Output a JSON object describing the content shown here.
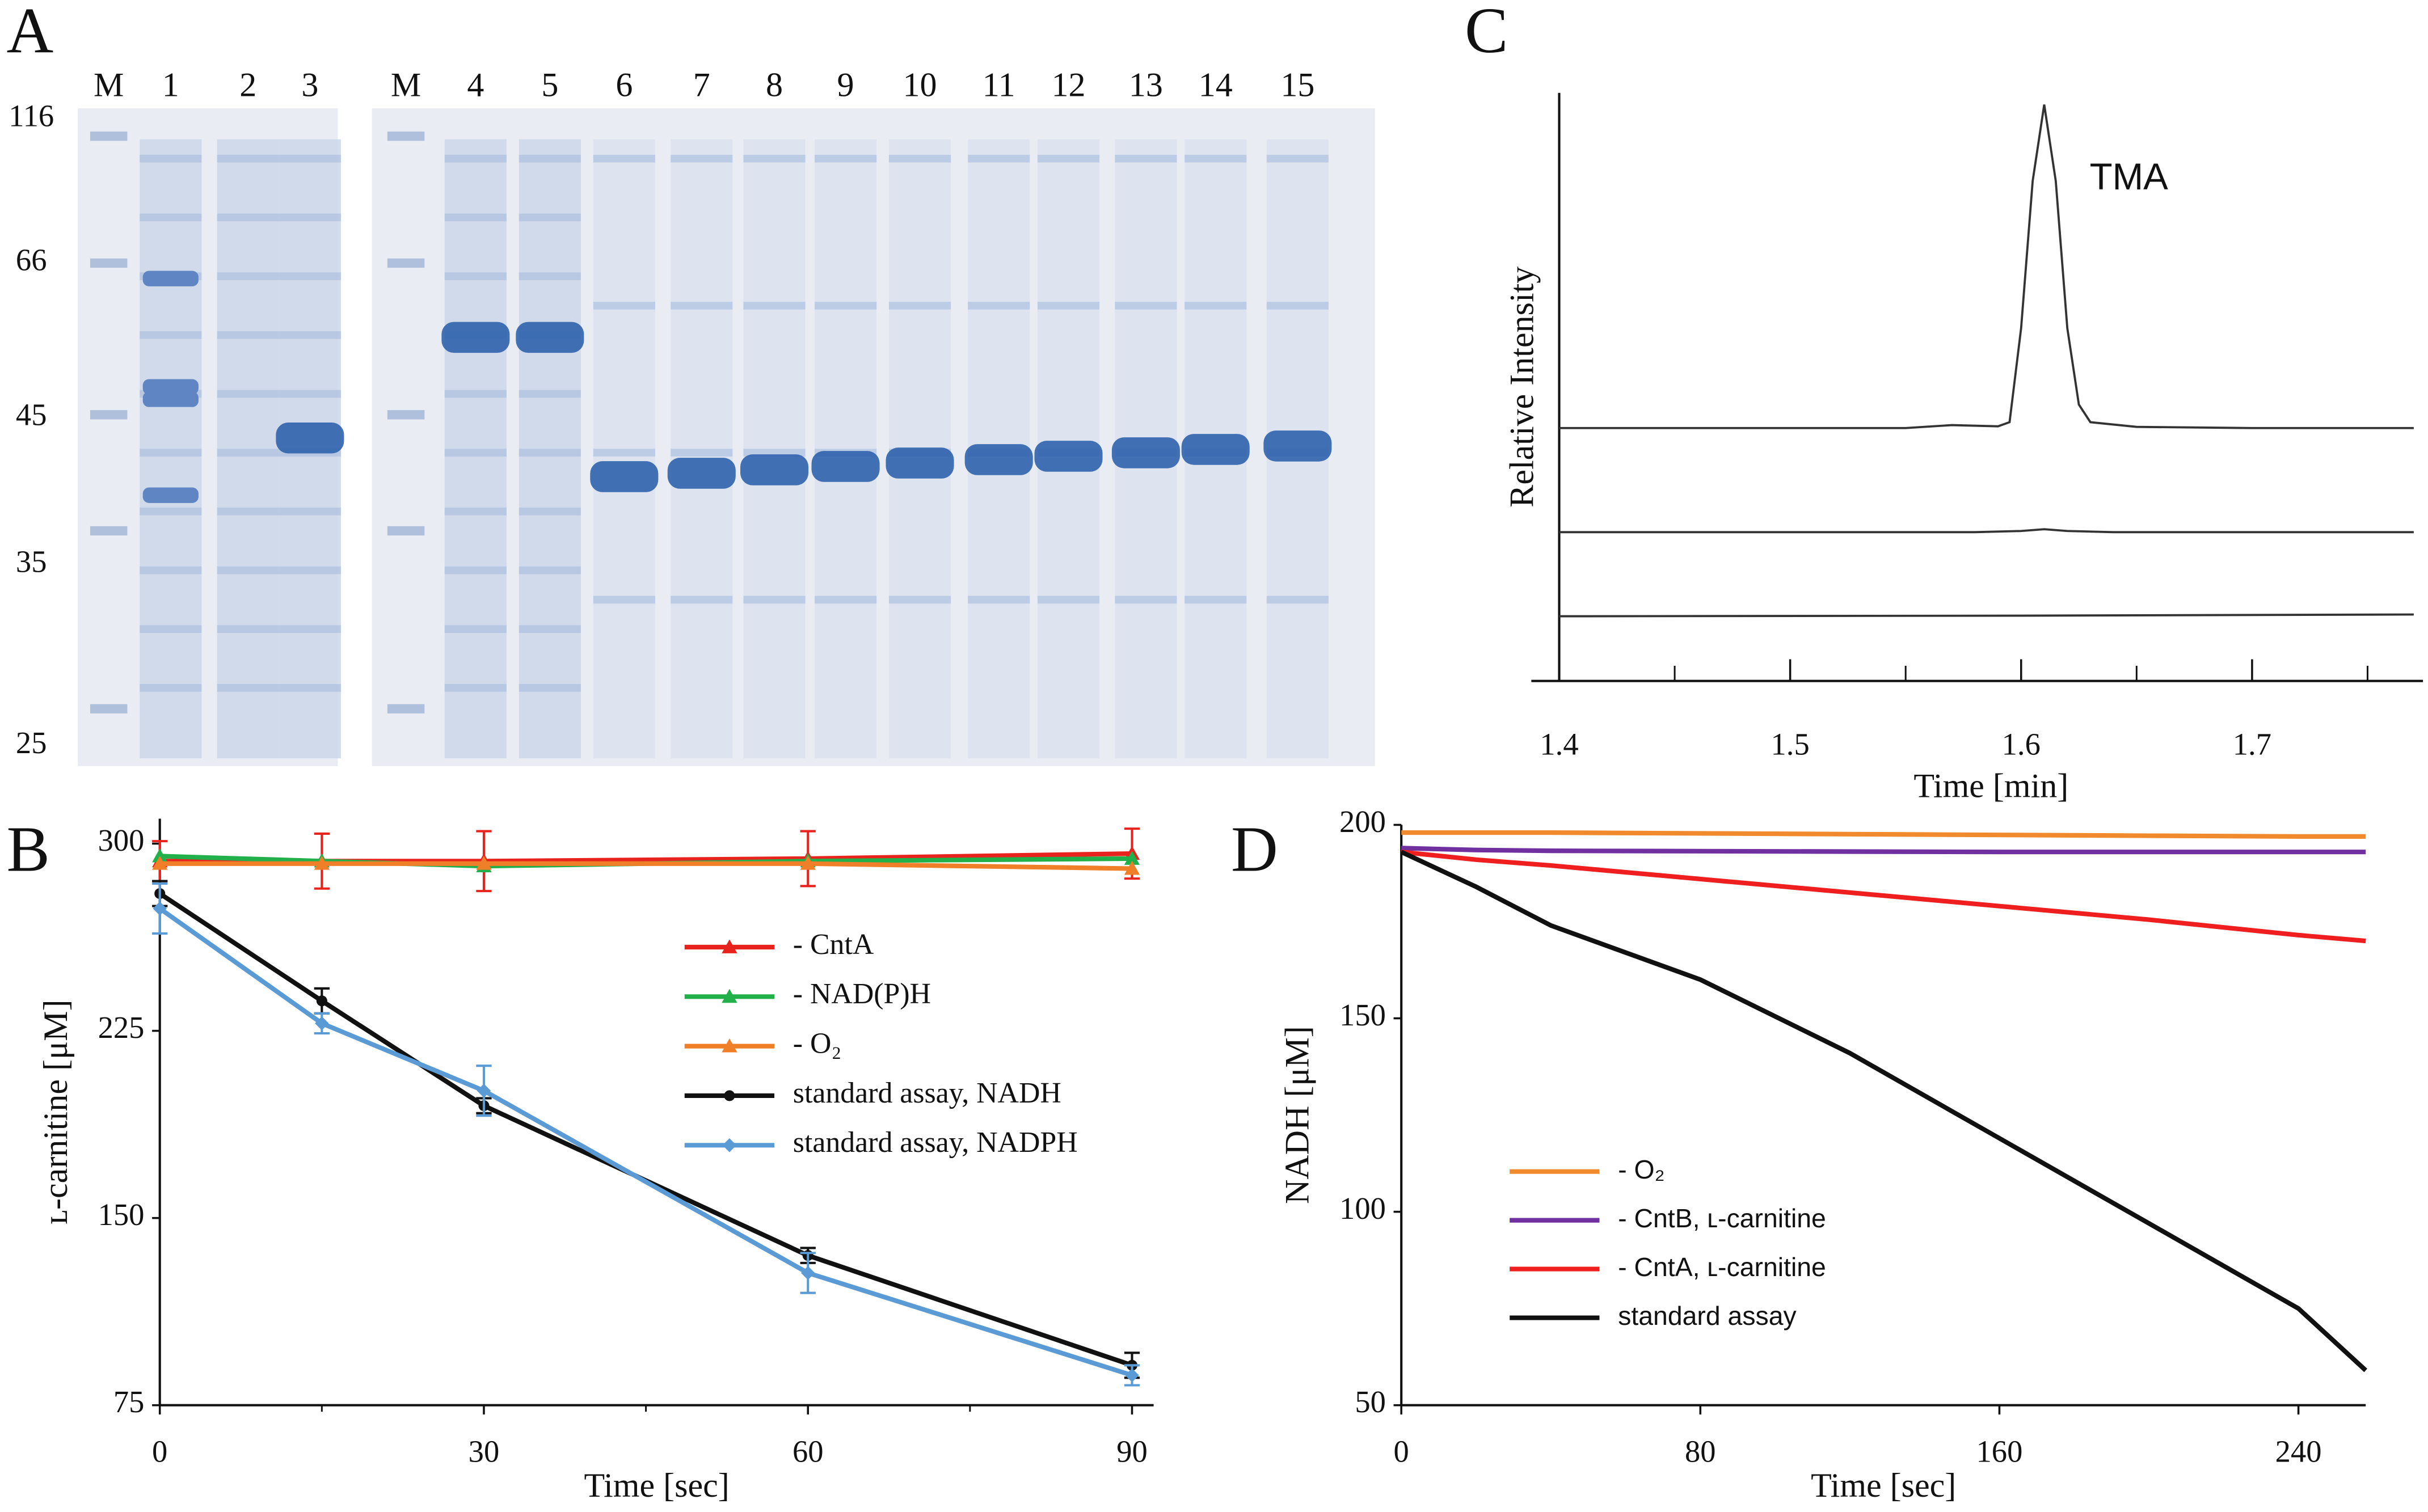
{
  "gel": {
    "panel": "A",
    "lanes": [
      "M",
      "1",
      "2",
      "3",
      "M",
      "4",
      "5",
      "6",
      "7",
      "8",
      "9",
      "10",
      "11",
      "12",
      "13",
      "14",
      "15"
    ],
    "markers": [
      116,
      66,
      45,
      35,
      25
    ]
  },
  "chart_data": [
    {
      "type": "line",
      "panel": "B",
      "x_label": "Time [sec]",
      "y_label": "ʟ-carnitine [μM]",
      "x": [
        0,
        15,
        30,
        60,
        90
      ],
      "xlim": [
        0,
        92
      ],
      "xticks": [
        0,
        30,
        60,
        90
      ],
      "xminorticks": [
        15,
        45,
        75
      ],
      "ylim": [
        75,
        310
      ],
      "yticks": [
        75,
        150,
        225,
        300
      ],
      "legend": "center-right",
      "series": [
        {
          "name": "- CntA",
          "color": "#e8231e",
          "marker": "triangle",
          "values": [
            293,
            293,
            293,
            294,
            296
          ],
          "errors": [
            8,
            11,
            12,
            11,
            10
          ]
        },
        {
          "name": "- NAD(P)H",
          "color": "#22b04b",
          "marker": "triangle",
          "values": [
            295,
            293,
            291,
            293,
            294
          ]
        },
        {
          "name": "- O₂",
          "color": "#f07f2a",
          "marker": "triangle",
          "values": [
            292,
            292,
            292,
            292,
            290
          ]
        },
        {
          "name": "standard assay, NADH",
          "color": "#111111",
          "marker": "circle",
          "values": [
            280,
            237,
            195,
            135,
            91
          ],
          "errors": [
            5,
            5,
            3,
            3,
            5
          ]
        },
        {
          "name": "standard assay, NADPH",
          "color": "#5b9bd5",
          "marker": "diamond",
          "values": [
            274,
            228,
            201,
            128,
            87
          ],
          "errors": [
            10,
            4,
            10,
            8,
            4
          ]
        }
      ]
    },
    {
      "type": "chromatogram",
      "panel": "C",
      "x_label": "Time [min]",
      "y_label": "Relative Intensity",
      "annotation": "TMA",
      "xlim": [
        1.4,
        1.774
      ],
      "xticks": [
        1.4,
        1.5,
        1.6,
        1.7
      ],
      "xminorticks": [
        1.45,
        1.55,
        1.65,
        1.75
      ],
      "ylim": [
        0,
        100
      ],
      "series": [
        {
          "color": "#333333",
          "x": [
            1.4,
            1.55,
            1.57,
            1.59,
            1.595,
            1.6,
            1.605,
            1.61,
            1.615,
            1.62,
            1.625,
            1.63,
            1.65,
            1.7,
            1.77
          ],
          "values": [
            43,
            43,
            43.5,
            43.3,
            44,
            60,
            85,
            98,
            85,
            60,
            47,
            44,
            43.2,
            43,
            43
          ]
        },
        {
          "color": "#333333",
          "x": [
            1.4,
            1.58,
            1.6,
            1.61,
            1.62,
            1.64,
            1.77
          ],
          "values": [
            25.3,
            25.3,
            25.5,
            25.8,
            25.5,
            25.3,
            25.3
          ]
        },
        {
          "color": "#333333",
          "x": [
            1.4,
            1.6,
            1.77
          ],
          "values": [
            11,
            11.1,
            11.3
          ]
        }
      ]
    },
    {
      "type": "line",
      "panel": "D",
      "x_label": "Time [sec]",
      "y_label": "NADH [μM]",
      "x": [
        0,
        20,
        40,
        80,
        120,
        160,
        200,
        240,
        258
      ],
      "xlim": [
        0,
        258
      ],
      "xticks": [
        0,
        80,
        160,
        240
      ],
      "ylim": [
        50,
        200
      ],
      "yticks": [
        50,
        100,
        150,
        200
      ],
      "legend": "lower-left",
      "series": [
        {
          "name": "- O₂",
          "color": "#f08a2c",
          "values": [
            198,
            198,
            198,
            197.8,
            197.6,
            197.4,
            197.2,
            197,
            197
          ]
        },
        {
          "name": "- CntB, ʟ-carnitine",
          "color": "#7030a0",
          "values": [
            194,
            193.5,
            193.3,
            193.2,
            193.1,
            193,
            193,
            193,
            193
          ]
        },
        {
          "name": "- CntA, ʟ-carnitine",
          "color": "#f01f1f",
          "values": [
            193,
            191,
            189.5,
            186,
            182.5,
            179,
            175.5,
            171.5,
            170
          ]
        },
        {
          "name": "standard assay",
          "color": "#111111",
          "values": [
            193,
            184,
            174,
            160,
            141,
            119,
            97,
            75,
            59
          ]
        }
      ]
    }
  ]
}
